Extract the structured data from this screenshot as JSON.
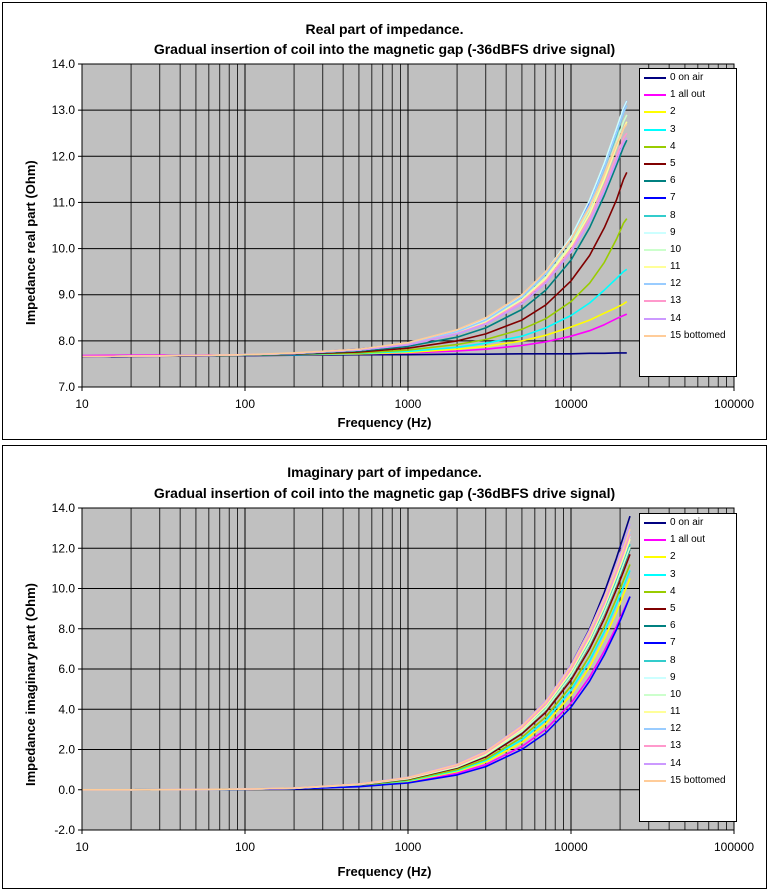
{
  "chart_data": [
    {
      "type": "line",
      "title": "Real part of impedance.",
      "subtitle": "Gradual insertion of coil into the magnetic gap (-36dBFS drive signal)",
      "xlabel": "Frequency (Hz)",
      "ylabel": "Impedance real part (Ohm)",
      "xscale": "log",
      "xlim": [
        10,
        100000
      ],
      "ylim": [
        7.0,
        14.0
      ],
      "x_ticks": [
        "10",
        "100",
        "1000",
        "10000",
        "100000"
      ],
      "y_ticks": [
        "7.0",
        "8.0",
        "9.0",
        "10.0",
        "11.0",
        "12.0",
        "13.0",
        "14.0"
      ],
      "grid": true,
      "legend_position": "right",
      "x": [
        10,
        20,
        50,
        100,
        200,
        500,
        1000,
        2000,
        3000,
        5000,
        7000,
        10000,
        13000,
        16000,
        19000,
        21000,
        22000
      ],
      "series": [
        {
          "name": "0 on air",
          "color": "#000080",
          "values": [
            7.65,
            7.66,
            7.67,
            7.68,
            7.69,
            7.7,
            7.7,
            7.71,
            7.71,
            7.72,
            7.72,
            7.72,
            7.73,
            7.73,
            7.74,
            7.74,
            7.74
          ]
        },
        {
          "name": "1 all out",
          "color": "#FF00FF",
          "values": [
            7.68,
            7.69,
            7.69,
            7.7,
            7.7,
            7.72,
            7.74,
            7.78,
            7.82,
            7.9,
            7.98,
            8.1,
            8.22,
            8.35,
            8.48,
            8.55,
            8.58
          ]
        },
        {
          "name": "2",
          "color": "#FFFF00",
          "values": [
            7.66,
            7.67,
            7.68,
            7.69,
            7.7,
            7.72,
            7.75,
            7.82,
            7.88,
            8.0,
            8.12,
            8.3,
            8.45,
            8.6,
            8.72,
            8.8,
            8.85
          ]
        },
        {
          "name": "3",
          "color": "#00FFFF",
          "values": [
            7.66,
            7.67,
            7.68,
            7.69,
            7.7,
            7.73,
            7.77,
            7.86,
            7.95,
            8.1,
            8.28,
            8.55,
            8.82,
            9.1,
            9.35,
            9.5,
            9.55
          ]
        },
        {
          "name": "4",
          "color": "#99CC00",
          "values": [
            7.66,
            7.67,
            7.68,
            7.69,
            7.71,
            7.74,
            7.8,
            7.92,
            8.03,
            8.25,
            8.48,
            8.85,
            9.25,
            9.7,
            10.2,
            10.55,
            10.65
          ]
        },
        {
          "name": "5",
          "color": "#800000",
          "values": [
            7.66,
            7.67,
            7.68,
            7.69,
            7.71,
            7.76,
            7.84,
            8.0,
            8.15,
            8.45,
            8.78,
            9.3,
            9.85,
            10.45,
            11.05,
            11.5,
            11.65
          ]
        },
        {
          "name": "6",
          "color": "#008080",
          "values": [
            7.66,
            7.67,
            7.68,
            7.69,
            7.72,
            7.78,
            7.88,
            8.08,
            8.28,
            8.68,
            9.1,
            9.75,
            10.45,
            11.15,
            11.8,
            12.2,
            12.35
          ]
        },
        {
          "name": "7",
          "color": "#0000FF",
          "values": [
            7.66,
            7.67,
            7.68,
            7.7,
            7.73,
            7.82,
            7.95,
            8.22,
            8.48,
            8.98,
            9.48,
            10.22,
            11.0,
            11.8,
            12.55,
            13.05,
            13.2
          ]
        },
        {
          "name": "8",
          "color": "#33CCCC",
          "values": [
            7.66,
            7.67,
            7.68,
            7.7,
            7.73,
            7.8,
            7.93,
            8.2,
            8.45,
            8.95,
            9.45,
            10.2,
            10.95,
            11.75,
            12.45,
            12.95,
            13.1
          ]
        },
        {
          "name": "9",
          "color": "#CCFFFF",
          "values": [
            7.66,
            7.67,
            7.68,
            7.7,
            7.73,
            7.81,
            7.94,
            8.22,
            8.48,
            8.98,
            9.5,
            10.25,
            11.05,
            11.85,
            12.6,
            13.05,
            13.2
          ]
        },
        {
          "name": "10",
          "color": "#CCFFCC",
          "values": [
            7.66,
            7.67,
            7.68,
            7.7,
            7.73,
            7.8,
            7.92,
            8.18,
            8.42,
            8.9,
            9.38,
            10.1,
            10.85,
            11.6,
            12.3,
            12.75,
            12.9
          ]
        },
        {
          "name": "11",
          "color": "#FFFF99",
          "values": [
            7.66,
            7.67,
            7.68,
            7.7,
            7.73,
            7.8,
            7.92,
            8.17,
            8.4,
            8.88,
            9.35,
            10.05,
            10.75,
            11.5,
            12.2,
            12.6,
            12.75
          ]
        },
        {
          "name": "12",
          "color": "#99CCFF",
          "values": [
            7.66,
            7.67,
            7.68,
            7.7,
            7.73,
            7.81,
            7.93,
            8.2,
            8.45,
            8.95,
            9.45,
            10.2,
            10.95,
            11.75,
            12.5,
            12.95,
            13.1
          ]
        },
        {
          "name": "13",
          "color": "#FF99CC",
          "values": [
            7.66,
            7.67,
            7.68,
            7.7,
            7.73,
            7.8,
            7.92,
            8.16,
            8.38,
            8.85,
            9.3,
            9.98,
            10.65,
            11.35,
            12.0,
            12.4,
            12.5
          ]
        },
        {
          "name": "14",
          "color": "#CC99FF",
          "values": [
            7.66,
            7.67,
            7.68,
            7.7,
            7.73,
            7.8,
            7.91,
            8.15,
            8.36,
            8.8,
            9.25,
            9.92,
            10.58,
            11.25,
            11.9,
            12.3,
            12.4
          ]
        },
        {
          "name": "15 bottomed",
          "color": "#FFCC99",
          "values": [
            7.66,
            7.67,
            7.68,
            7.7,
            7.74,
            7.82,
            7.96,
            8.24,
            8.5,
            9.0,
            9.5,
            10.2,
            10.9,
            11.6,
            12.25,
            12.6,
            12.7
          ]
        }
      ]
    },
    {
      "type": "line",
      "title": "Imaginary part of impedance.",
      "subtitle": "Gradual insertion of coil into the magnetic gap (-36dBFS drive signal)",
      "xlabel": "Frequency (Hz)",
      "ylabel": "Impedance imaginary part (Ohm)",
      "xscale": "log",
      "xlim": [
        10,
        100000
      ],
      "ylim": [
        -2.0,
        14.0
      ],
      "x_ticks": [
        "10",
        "100",
        "1000",
        "10000",
        "100000"
      ],
      "y_ticks": [
        "-2.0",
        "0.0",
        "2.0",
        "4.0",
        "6.0",
        "8.0",
        "10.0",
        "12.0",
        "14.0"
      ],
      "grid": true,
      "legend_position": "right",
      "x": [
        10,
        20,
        50,
        100,
        200,
        500,
        1000,
        2000,
        3000,
        5000,
        7000,
        10000,
        13000,
        16000,
        19000,
        21000,
        23000
      ],
      "series": [
        {
          "name": "0 on air",
          "color": "#000080",
          "values": [
            0.0,
            0.0,
            0.01,
            0.03,
            0.08,
            0.28,
            0.6,
            1.2,
            1.85,
            3.1,
            4.35,
            6.2,
            8.0,
            9.8,
            11.5,
            12.6,
            13.6
          ]
        },
        {
          "name": "1 all out",
          "color": "#FF00FF",
          "values": [
            0.0,
            0.0,
            0.01,
            0.02,
            0.05,
            0.17,
            0.38,
            0.82,
            1.25,
            2.15,
            3.0,
            4.3,
            5.6,
            6.9,
            8.1,
            8.9,
            9.6
          ]
        },
        {
          "name": "2",
          "color": "#FFFF00",
          "values": [
            0.0,
            0.0,
            0.01,
            0.02,
            0.05,
            0.19,
            0.42,
            0.9,
            1.38,
            2.35,
            3.28,
            4.7,
            6.1,
            7.5,
            8.8,
            9.7,
            10.5
          ]
        },
        {
          "name": "3",
          "color": "#00FFFF",
          "values": [
            0.0,
            0.0,
            0.01,
            0.02,
            0.06,
            0.2,
            0.45,
            0.95,
            1.45,
            2.48,
            3.45,
            4.95,
            6.4,
            7.85,
            9.2,
            10.1,
            10.9
          ]
        },
        {
          "name": "4",
          "color": "#99CC00",
          "values": [
            0.0,
            0.0,
            0.01,
            0.03,
            0.06,
            0.21,
            0.48,
            1.0,
            1.52,
            2.6,
            3.62,
            5.15,
            6.65,
            8.1,
            9.5,
            10.4,
            11.2
          ]
        },
        {
          "name": "5",
          "color": "#800000",
          "values": [
            0.0,
            0.0,
            0.01,
            0.03,
            0.07,
            0.23,
            0.52,
            1.08,
            1.63,
            2.78,
            3.85,
            5.45,
            7.0,
            8.5,
            9.95,
            10.85,
            11.7
          ]
        },
        {
          "name": "6",
          "color": "#008080",
          "values": [
            0.0,
            0.0,
            0.01,
            0.03,
            0.07,
            0.24,
            0.54,
            1.12,
            1.7,
            2.88,
            3.98,
            5.62,
            7.2,
            8.75,
            10.2,
            11.1,
            11.95
          ]
        },
        {
          "name": "7",
          "color": "#0000FF",
          "values": [
            0.0,
            0.0,
            0.01,
            0.02,
            0.04,
            0.15,
            0.34,
            0.74,
            1.15,
            2.0,
            2.82,
            4.1,
            5.4,
            6.7,
            7.95,
            8.8,
            9.6
          ]
        },
        {
          "name": "8",
          "color": "#33CCCC",
          "values": [
            0.0,
            0.0,
            0.01,
            0.03,
            0.07,
            0.25,
            0.56,
            1.15,
            1.75,
            2.95,
            4.08,
            5.75,
            7.35,
            8.9,
            10.4,
            11.3,
            12.2
          ]
        },
        {
          "name": "9",
          "color": "#CCFFFF",
          "values": [
            0.0,
            0.0,
            0.01,
            0.03,
            0.08,
            0.27,
            0.58,
            1.2,
            1.82,
            3.05,
            4.22,
            5.95,
            7.6,
            9.2,
            10.75,
            11.7,
            12.6
          ]
        },
        {
          "name": "10",
          "color": "#CCFFCC",
          "values": [
            0.0,
            0.0,
            0.01,
            0.03,
            0.07,
            0.25,
            0.55,
            1.13,
            1.72,
            2.9,
            4.0,
            5.65,
            7.25,
            8.8,
            10.25,
            11.2,
            12.05
          ]
        },
        {
          "name": "11",
          "color": "#FFFF99",
          "values": [
            0.0,
            0.0,
            0.01,
            0.03,
            0.07,
            0.26,
            0.57,
            1.17,
            1.78,
            3.0,
            4.15,
            5.85,
            7.5,
            9.1,
            10.6,
            11.55,
            12.45
          ]
        },
        {
          "name": "12",
          "color": "#99CCFF",
          "values": [
            0.0,
            0.0,
            0.01,
            0.03,
            0.08,
            0.28,
            0.6,
            1.23,
            1.86,
            3.12,
            4.3,
            6.05,
            7.75,
            9.35,
            10.9,
            11.85,
            12.8
          ]
        },
        {
          "name": "13",
          "color": "#FF99CC",
          "values": [
            0.0,
            0.0,
            0.01,
            0.03,
            0.08,
            0.27,
            0.59,
            1.2,
            1.83,
            3.08,
            4.25,
            5.98,
            7.65,
            9.25,
            10.8,
            11.75,
            12.7
          ]
        },
        {
          "name": "14",
          "color": "#CC99FF",
          "values": [
            0.0,
            0.0,
            0.01,
            0.03,
            0.08,
            0.29,
            0.62,
            1.27,
            1.92,
            3.2,
            4.42,
            6.2,
            7.95,
            9.6,
            11.2,
            12.2,
            13.2
          ]
        },
        {
          "name": "15 bottomed",
          "color": "#FFCC99",
          "values": [
            0.0,
            0.0,
            0.01,
            0.03,
            0.08,
            0.28,
            0.61,
            1.25,
            1.89,
            3.16,
            4.36,
            6.12,
            7.85,
            9.5,
            11.05,
            12.0,
            12.95
          ]
        }
      ]
    }
  ]
}
